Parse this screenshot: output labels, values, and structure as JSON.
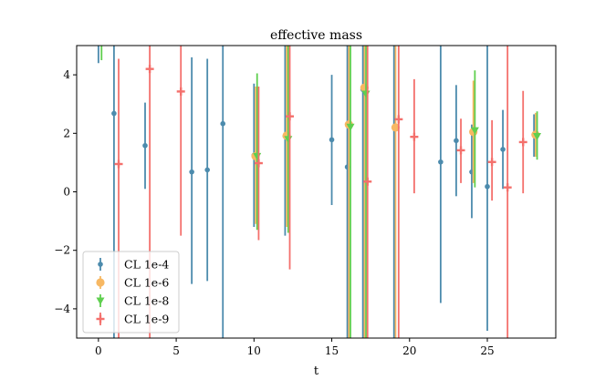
{
  "chart_data": {
    "type": "scatter",
    "title": "effective mass",
    "xlabel": "t",
    "ylabel": "",
    "xlim": [
      -1.4,
      29.4
    ],
    "ylim": [
      -5,
      5
    ],
    "xticks": [
      0,
      5,
      10,
      15,
      20,
      25
    ],
    "yticks": [
      -4,
      -2,
      0,
      2,
      4
    ],
    "xtick_labels": [
      "0",
      "5",
      "10",
      "15",
      "20",
      "25"
    ],
    "ytick_labels": [
      "−4",
      "−2",
      "0",
      "2",
      "4"
    ],
    "grid": false,
    "legend_position": "lower-left",
    "series": [
      {
        "name": "CL 1e-4",
        "color": "#4c8bad",
        "marker": "circle",
        "points": [
          {
            "x": 0,
            "y": 5.5,
            "lo": 4.4,
            "hi": 5.2
          },
          {
            "x": 1,
            "y": 2.68,
            "lo": -5.0,
            "hi": 5.0
          },
          {
            "x": 3,
            "y": 1.58,
            "lo": 0.1,
            "hi": 3.05
          },
          {
            "x": 6,
            "y": 0.68,
            "lo": -3.15,
            "hi": 4.6
          },
          {
            "x": 7,
            "y": 0.75,
            "lo": -3.05,
            "hi": 4.55
          },
          {
            "x": 8,
            "y": 2.33,
            "lo": -5.0,
            "hi": 5.0
          },
          {
            "x": 10,
            "y": 1.25,
            "lo": -1.2,
            "hi": 3.7
          },
          {
            "x": 12,
            "y": 1.9,
            "lo": -1.5,
            "hi": 5.0
          },
          {
            "x": 15,
            "y": 1.78,
            "lo": -0.45,
            "hi": 4.0
          },
          {
            "x": 16,
            "y": 0.85,
            "lo": -5.0,
            "hi": 5.0
          },
          {
            "x": 17,
            "y": 3.5,
            "lo": -5.0,
            "hi": 5.0
          },
          {
            "x": 19,
            "y": 2.2,
            "lo": -5.0,
            "hi": 5.0
          },
          {
            "x": 22,
            "y": 1.02,
            "lo": -3.8,
            "hi": 5.0
          },
          {
            "x": 23,
            "y": 1.75,
            "lo": -0.15,
            "hi": 3.65
          },
          {
            "x": 24,
            "y": 0.68,
            "lo": -0.9,
            "hi": 2.3
          },
          {
            "x": 25,
            "y": 0.18,
            "lo": -4.75,
            "hi": 5.0
          },
          {
            "x": 26,
            "y": 1.45,
            "lo": 0.1,
            "hi": 2.8
          },
          {
            "x": 28,
            "y": 1.95,
            "lo": 1.2,
            "hi": 2.65
          }
        ]
      },
      {
        "name": "CL 1e-6",
        "color": "#f7b863",
        "marker": "circle-large",
        "points": [
          {
            "x": 10,
            "y": 1.22,
            "lo": -1.1,
            "hi": 3.6
          },
          {
            "x": 12,
            "y": 1.92,
            "lo": -1.2,
            "hi": 5.0
          },
          {
            "x": 16,
            "y": 2.3,
            "lo": -5.0,
            "hi": 5.0
          },
          {
            "x": 17,
            "y": 3.56,
            "lo": -5.0,
            "hi": 5.0
          },
          {
            "x": 19,
            "y": 2.2,
            "lo": -5.0,
            "hi": 5.0
          },
          {
            "x": 24,
            "y": 2.05,
            "lo": 0.3,
            "hi": 3.8
          },
          {
            "x": 28,
            "y": 1.95,
            "lo": 1.2,
            "hi": 2.7
          }
        ]
      },
      {
        "name": "CL 1e-8",
        "color": "#5fcf4f",
        "marker": "triangle-down",
        "points": [
          {
            "x": 0,
            "y": 5.5,
            "lo": 4.5,
            "hi": 5.0
          },
          {
            "x": 10,
            "y": 1.22,
            "lo": -1.3,
            "hi": 4.05
          },
          {
            "x": 12,
            "y": 1.8,
            "lo": -1.4,
            "hi": 5.0
          },
          {
            "x": 16,
            "y": 2.22,
            "lo": -5.0,
            "hi": 5.0
          },
          {
            "x": 17,
            "y": 3.35,
            "lo": -5.0,
            "hi": 5.0
          },
          {
            "x": 24,
            "y": 2.1,
            "lo": 0.15,
            "hi": 4.15
          },
          {
            "x": 28,
            "y": 1.9,
            "lo": 1.1,
            "hi": 2.75
          }
        ]
      },
      {
        "name": "CL 1e-9",
        "color": "#f4706c",
        "marker": "plus",
        "points": [
          {
            "x": 1,
            "y": 0.95,
            "lo": -5.0,
            "hi": 4.55
          },
          {
            "x": 3,
            "y": 4.2,
            "lo": -5.0,
            "hi": 5.0
          },
          {
            "x": 5,
            "y": 3.43,
            "lo": -1.5,
            "hi": 5.0
          },
          {
            "x": 10,
            "y": 0.98,
            "lo": -1.65,
            "hi": 3.6
          },
          {
            "x": 12,
            "y": 2.58,
            "lo": -2.65,
            "hi": 5.0
          },
          {
            "x": 17,
            "y": 0.35,
            "lo": -5.0,
            "hi": 5.0
          },
          {
            "x": 19,
            "y": 2.48,
            "lo": -5.0,
            "hi": 5.0
          },
          {
            "x": 20,
            "y": 1.88,
            "lo": -0.05,
            "hi": 3.85
          },
          {
            "x": 23,
            "y": 1.42,
            "lo": 0.3,
            "hi": 2.5
          },
          {
            "x": 25,
            "y": 1.02,
            "lo": -0.3,
            "hi": 2.45
          },
          {
            "x": 26,
            "y": 0.15,
            "lo": -5.0,
            "hi": 5.0
          },
          {
            "x": 27,
            "y": 1.7,
            "lo": -0.05,
            "hi": 3.45
          }
        ]
      }
    ]
  }
}
